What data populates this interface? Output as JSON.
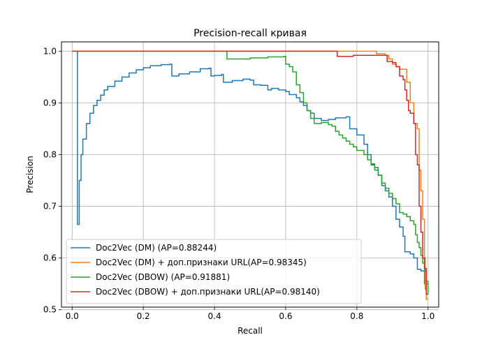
{
  "chart_data": {
    "type": "line",
    "title": "Precision-recall кривая",
    "xlabel": "Recall",
    "ylabel": "Precision",
    "xlim": [
      -0.03,
      1.03
    ],
    "ylim": [
      0.505,
      1.018
    ],
    "xticks": [
      "0.0",
      "0.2",
      "0.4",
      "0.6",
      "0.8",
      "1.0"
    ],
    "xtick_values": [
      0.0,
      0.2,
      0.4,
      0.6,
      0.8,
      1.0
    ],
    "yticks": [
      "0.5",
      "0.6",
      "0.7",
      "0.8",
      "0.9",
      "1.0"
    ],
    "ytick_values": [
      0.5,
      0.6,
      0.7,
      0.8,
      0.9,
      1.0
    ],
    "grid": true,
    "legend_position": "lower-left",
    "step": true,
    "series": [
      {
        "name": "Doc2Vec (DM) (AP=0.88244)",
        "color": "#1f77b4",
        "points": [
          [
            0.015,
            1.0
          ],
          [
            0.015,
            0.665
          ],
          [
            0.02,
            0.75
          ],
          [
            0.025,
            0.8
          ],
          [
            0.03,
            0.83
          ],
          [
            0.04,
            0.86
          ],
          [
            0.05,
            0.88
          ],
          [
            0.06,
            0.895
          ],
          [
            0.07,
            0.905
          ],
          [
            0.08,
            0.915
          ],
          [
            0.09,
            0.925
          ],
          [
            0.1,
            0.932
          ],
          [
            0.12,
            0.942
          ],
          [
            0.14,
            0.95
          ],
          [
            0.16,
            0.958
          ],
          [
            0.18,
            0.964
          ],
          [
            0.2,
            0.968
          ],
          [
            0.22,
            0.972
          ],
          [
            0.25,
            0.974
          ],
          [
            0.275,
            0.975
          ],
          [
            0.28,
            0.952
          ],
          [
            0.3,
            0.956
          ],
          [
            0.33,
            0.96
          ],
          [
            0.36,
            0.966
          ],
          [
            0.385,
            0.967
          ],
          [
            0.39,
            0.952
          ],
          [
            0.4,
            0.953
          ],
          [
            0.42,
            0.955
          ],
          [
            0.425,
            0.94
          ],
          [
            0.45,
            0.943
          ],
          [
            0.48,
            0.946
          ],
          [
            0.5,
            0.944
          ],
          [
            0.51,
            0.935
          ],
          [
            0.53,
            0.934
          ],
          [
            0.55,
            0.925
          ],
          [
            0.56,
            0.928
          ],
          [
            0.58,
            0.925
          ],
          [
            0.6,
            0.922
          ],
          [
            0.61,
            0.916
          ],
          [
            0.63,
            0.91
          ],
          [
            0.64,
            0.902
          ],
          [
            0.65,
            0.895
          ],
          [
            0.66,
            0.885
          ],
          [
            0.67,
            0.88
          ],
          [
            0.68,
            0.87
          ],
          [
            0.7,
            0.866
          ],
          [
            0.72,
            0.868
          ],
          [
            0.74,
            0.871
          ],
          [
            0.77,
            0.873
          ],
          [
            0.78,
            0.85
          ],
          [
            0.8,
            0.838
          ],
          [
            0.82,
            0.82
          ],
          [
            0.83,
            0.8
          ],
          [
            0.84,
            0.78
          ],
          [
            0.85,
            0.775
          ],
          [
            0.86,
            0.76
          ],
          [
            0.87,
            0.74
          ],
          [
            0.88,
            0.73
          ],
          [
            0.89,
            0.718
          ],
          [
            0.9,
            0.7
          ],
          [
            0.91,
            0.675
          ],
          [
            0.92,
            0.66
          ],
          [
            0.93,
            0.642
          ],
          [
            0.935,
            0.612
          ],
          [
            0.95,
            0.608
          ],
          [
            0.96,
            0.6
          ],
          [
            0.97,
            0.578
          ],
          [
            0.98,
            0.575
          ],
          [
            0.99,
            0.55
          ],
          [
            1.0,
            0.546
          ]
        ]
      },
      {
        "name": "Doc2Vec (DM) + доп.признаки URL(AP=0.98345)",
        "color": "#ff7f0e",
        "points": [
          [
            0.0,
            1.0
          ],
          [
            0.75,
            1.0
          ],
          [
            0.855,
            0.995
          ],
          [
            0.88,
            0.992
          ],
          [
            0.89,
            0.985
          ],
          [
            0.9,
            0.975
          ],
          [
            0.91,
            0.97
          ],
          [
            0.92,
            0.965
          ],
          [
            0.935,
            0.965
          ],
          [
            0.94,
            0.94
          ],
          [
            0.95,
            0.9
          ],
          [
            0.96,
            0.86
          ],
          [
            0.97,
            0.85
          ],
          [
            0.975,
            0.77
          ],
          [
            0.98,
            0.73
          ],
          [
            0.985,
            0.675
          ],
          [
            0.99,
            0.6
          ],
          [
            0.992,
            0.54
          ],
          [
            0.995,
            0.52
          ],
          [
            1.0,
            0.52
          ]
        ]
      },
      {
        "name": "Doc2Vec (DBOW) (AP=0.91881)",
        "color": "#2ca02c",
        "points": [
          [
            0.435,
            1.0
          ],
          [
            0.435,
            0.985
          ],
          [
            0.5,
            0.987
          ],
          [
            0.55,
            0.989
          ],
          [
            0.595,
            0.99
          ],
          [
            0.6,
            0.975
          ],
          [
            0.61,
            0.97
          ],
          [
            0.62,
            0.96
          ],
          [
            0.63,
            0.935
          ],
          [
            0.64,
            0.92
          ],
          [
            0.65,
            0.9
          ],
          [
            0.66,
            0.885
          ],
          [
            0.67,
            0.87
          ],
          [
            0.68,
            0.86
          ],
          [
            0.7,
            0.862
          ],
          [
            0.72,
            0.858
          ],
          [
            0.73,
            0.855
          ],
          [
            0.74,
            0.845
          ],
          [
            0.75,
            0.838
          ],
          [
            0.76,
            0.832
          ],
          [
            0.77,
            0.826
          ],
          [
            0.78,
            0.82
          ],
          [
            0.79,
            0.815
          ],
          [
            0.8,
            0.808
          ],
          [
            0.82,
            0.8
          ],
          [
            0.83,
            0.79
          ],
          [
            0.84,
            0.782
          ],
          [
            0.85,
            0.77
          ],
          [
            0.86,
            0.76
          ],
          [
            0.87,
            0.745
          ],
          [
            0.88,
            0.735
          ],
          [
            0.89,
            0.725
          ],
          [
            0.9,
            0.715
          ],
          [
            0.91,
            0.705
          ],
          [
            0.92,
            0.688
          ],
          [
            0.93,
            0.685
          ],
          [
            0.94,
            0.68
          ],
          [
            0.95,
            0.672
          ],
          [
            0.96,
            0.665
          ],
          [
            0.965,
            0.645
          ],
          [
            0.97,
            0.63
          ],
          [
            0.975,
            0.62
          ],
          [
            0.98,
            0.605
          ],
          [
            0.985,
            0.59
          ],
          [
            0.99,
            0.575
          ],
          [
            0.995,
            0.555
          ],
          [
            1.0,
            0.53
          ]
        ]
      },
      {
        "name": "Doc2Vec (DBOW) + доп.признаки URL(AP=0.98140)",
        "color": "#d62728",
        "points": [
          [
            0.0,
            1.0
          ],
          [
            0.74,
            1.0
          ],
          [
            0.745,
            0.99
          ],
          [
            0.79,
            0.992
          ],
          [
            0.88,
            0.992
          ],
          [
            0.885,
            0.98
          ],
          [
            0.9,
            0.978
          ],
          [
            0.91,
            0.97
          ],
          [
            0.92,
            0.952
          ],
          [
            0.93,
            0.945
          ],
          [
            0.935,
            0.925
          ],
          [
            0.94,
            0.905
          ],
          [
            0.945,
            0.885
          ],
          [
            0.95,
            0.88
          ],
          [
            0.96,
            0.86
          ],
          [
            0.965,
            0.8
          ],
          [
            0.97,
            0.78
          ],
          [
            0.975,
            0.7
          ],
          [
            0.98,
            0.65
          ],
          [
            0.985,
            0.6
          ],
          [
            0.99,
            0.58
          ],
          [
            0.995,
            0.53
          ],
          [
            1.0,
            0.53
          ]
        ]
      }
    ]
  }
}
